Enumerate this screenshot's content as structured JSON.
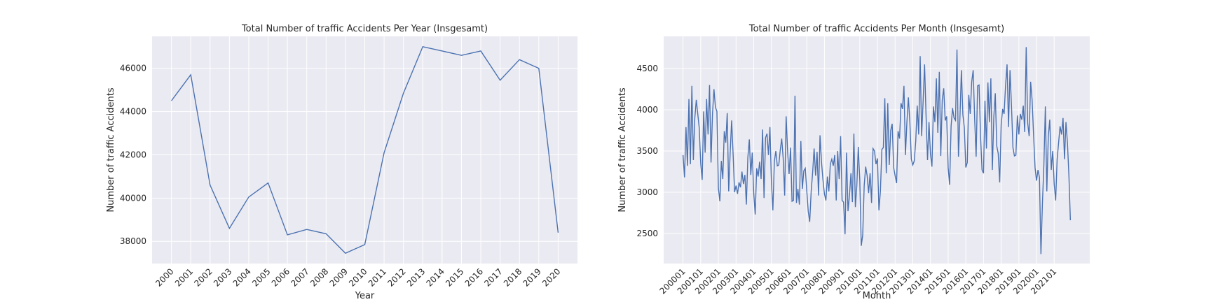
{
  "chart_data": [
    {
      "type": "line",
      "title": "Total Number of traffic Accidents Per Year (Insgesamt)",
      "x_label": "Year",
      "y_label": "Number of traffic Accidents",
      "x": [
        2000,
        2001,
        2002,
        2003,
        2004,
        2005,
        2006,
        2007,
        2008,
        2009,
        2010,
        2011,
        2012,
        2013,
        2014,
        2015,
        2016,
        2017,
        2018,
        2019,
        2020
      ],
      "xticks": [
        2000,
        2001,
        2002,
        2003,
        2004,
        2005,
        2006,
        2007,
        2008,
        2009,
        2010,
        2011,
        2012,
        2013,
        2014,
        2015,
        2016,
        2017,
        2018,
        2019,
        2020
      ],
      "xlim": [
        1999,
        2021
      ],
      "series": [
        {
          "color": "#4c72b0",
          "values": [
            44500,
            45700,
            40600,
            38600,
            40050,
            40700,
            38300,
            38550,
            38350,
            37450,
            37850,
            42100,
            44850,
            47000,
            46800,
            46600,
            46800,
            45450,
            46400,
            46000,
            38400
          ]
        }
      ],
      "ylim": [
        36973,
        47477
      ],
      "yticks": [
        38000,
        40000,
        42000,
        44000,
        46000
      ],
      "grid": true
    },
    {
      "type": "line",
      "title": "Total Number of traffic Accidents Per Month (Insgesamt)",
      "x_label": "Month",
      "y_label": "Number of traffic Accidents",
      "categories": [
        "200001",
        null,
        null,
        null,
        null,
        null,
        null,
        null,
        null,
        null,
        null,
        null,
        "200101",
        null,
        null,
        null,
        null,
        null,
        null,
        null,
        null,
        null,
        null,
        null,
        "200201",
        null,
        null,
        null,
        null,
        null,
        null,
        null,
        null,
        null,
        null,
        null,
        "200301",
        null,
        null,
        null,
        null,
        null,
        null,
        null,
        null,
        null,
        null,
        null,
        "200401",
        null,
        null,
        null,
        null,
        null,
        null,
        null,
        null,
        null,
        null,
        null,
        "200501",
        null,
        null,
        null,
        null,
        null,
        null,
        null,
        null,
        null,
        null,
        null,
        "200601",
        null,
        null,
        null,
        null,
        null,
        null,
        null,
        null,
        null,
        null,
        null,
        "200701",
        null,
        null,
        null,
        null,
        null,
        null,
        null,
        null,
        null,
        null,
        null,
        "200801",
        null,
        null,
        null,
        null,
        null,
        null,
        null,
        null,
        null,
        null,
        null,
        "200901",
        null,
        null,
        null,
        null,
        null,
        null,
        null,
        null,
        null,
        null,
        null,
        "201001",
        null,
        null,
        null,
        null,
        null,
        null,
        null,
        null,
        null,
        null,
        null,
        "201101",
        null,
        null,
        null,
        null,
        null,
        null,
        null,
        null,
        null,
        null,
        null,
        "201201",
        null,
        null,
        null,
        null,
        null,
        null,
        null,
        null,
        null,
        null,
        null,
        "201301",
        null,
        null,
        null,
        null,
        null,
        null,
        null,
        null,
        null,
        null,
        null,
        "201401",
        null,
        null,
        null,
        null,
        null,
        null,
        null,
        null,
        null,
        null,
        null,
        "201501",
        null,
        null,
        null,
        null,
        null,
        null,
        null,
        null,
        null,
        null,
        null,
        "201601",
        null,
        null,
        null,
        null,
        null,
        null,
        null,
        null,
        null,
        null,
        null,
        "201701",
        null,
        null,
        null,
        null,
        null,
        null,
        null,
        null,
        null,
        null,
        null,
        "201801",
        null,
        null,
        null,
        null,
        null,
        null,
        null,
        null,
        null,
        null,
        null,
        "201901",
        null,
        null,
        null,
        null,
        null,
        null,
        null,
        null,
        null,
        null,
        null,
        "202001",
        null,
        null,
        null,
        null,
        null,
        null,
        null,
        null,
        null,
        null,
        null,
        "202101",
        null,
        null,
        null,
        null,
        null,
        null,
        null,
        null,
        null,
        null,
        null
      ],
      "series": [
        {
          "color": "#4c72b0",
          "values": [
            3450,
            3180,
            3790,
            3320,
            4130,
            3340,
            4290,
            3390,
            3900,
            4120,
            3950,
            3780,
            3350,
            3150,
            3980,
            3480,
            4130,
            3700,
            4300,
            3360,
            3950,
            4250,
            4030,
            3980,
            3050,
            2890,
            3380,
            3160,
            3740,
            3600,
            3960,
            3010,
            3480,
            3870,
            3460,
            3000,
            3080,
            2980,
            3120,
            3060,
            3250,
            3100,
            3210,
            2850,
            3420,
            3640,
            3210,
            3480,
            2990,
            2730,
            3290,
            3190,
            3370,
            3160,
            3760,
            2930,
            3660,
            3710,
            3450,
            3790,
            3130,
            2780,
            3370,
            3500,
            3320,
            3330,
            3510,
            3650,
            3410,
            2960,
            3920,
            3500,
            3220,
            3540,
            2890,
            2900,
            4170,
            2870,
            3040,
            2850,
            3620,
            3040,
            3260,
            3290,
            3020,
            2770,
            2640,
            3010,
            3240,
            3530,
            3200,
            3490,
            2960,
            3690,
            3370,
            3150,
            2980,
            2900,
            3190,
            3010,
            3340,
            3400,
            3320,
            3450,
            2900,
            3500,
            3160,
            3680,
            2900,
            2880,
            2490,
            3480,
            2770,
            2960,
            3230,
            2880,
            3710,
            2820,
            3080,
            3550,
            3150,
            2350,
            2480,
            3080,
            3310,
            3200,
            2990,
            3230,
            2870,
            3530,
            3500,
            3340,
            3410,
            2780,
            3010,
            3520,
            3540,
            4140,
            3230,
            4080,
            3330,
            3750,
            3830,
            3300,
            3200,
            3110,
            3740,
            3650,
            4080,
            4010,
            4290,
            3450,
            3850,
            4150,
            3850,
            3400,
            3330,
            3380,
            3620,
            4050,
            3700,
            4650,
            3680,
            4100,
            4550,
            3930,
            3390,
            3850,
            3460,
            3310,
            4040,
            3850,
            4380,
            3720,
            4460,
            3440,
            4120,
            4260,
            3870,
            3920,
            3300,
            3090,
            3800,
            4020,
            3900,
            3870,
            4730,
            3430,
            3900,
            4480,
            3940,
            3780,
            3300,
            3360,
            4180,
            3950,
            4340,
            4480,
            3890,
            3430,
            4290,
            4300,
            3680,
            3270,
            3230,
            4110,
            3530,
            4330,
            3850,
            4380,
            3270,
            3910,
            4200,
            3560,
            3470,
            3120,
            3820,
            4010,
            3950,
            4300,
            4550,
            3790,
            4480,
            4050,
            3540,
            3440,
            3450,
            3930,
            3700,
            3950,
            3880,
            4050,
            3730,
            4760,
            3840,
            3680,
            4340,
            4120,
            3700,
            3300,
            3140,
            3270,
            3180,
            2250,
            2860,
            3330,
            4040,
            3010,
            3680,
            3880,
            3270,
            3500,
            3100,
            2900,
            3400,
            3600,
            3800,
            3700,
            3900,
            3400,
            3850,
            3600,
            3200,
            2660
          ]
        }
      ],
      "ylim": [
        2135,
        4890
      ],
      "yticks": [
        2500,
        3000,
        3500,
        4000,
        4500
      ],
      "grid": true
    }
  ]
}
